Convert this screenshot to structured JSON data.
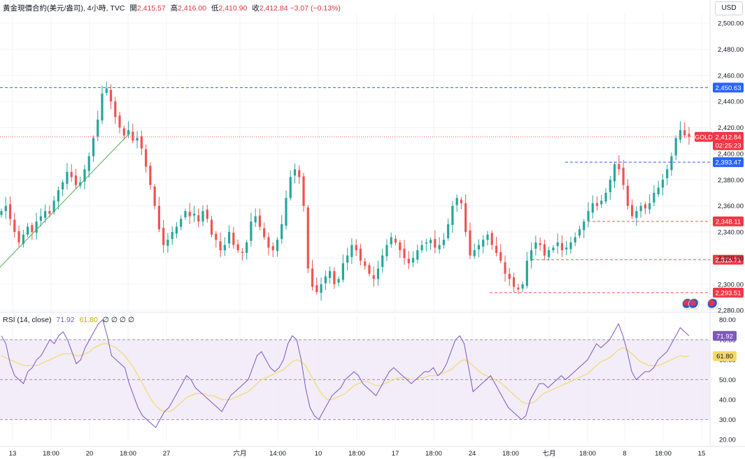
{
  "header": {
    "symbol": "黃金現價合約(美元/盎司), 4小時, TVC",
    "open_label": "開",
    "open": "2,415.57",
    "high_label": "高",
    "high": "2,416.00",
    "low_label": "低",
    "low": "2,410.90",
    "close_label": "收",
    "close": "2,412.84",
    "change": "−3.07 (−0.13%)"
  },
  "currency_button": "USD",
  "rsi_header": {
    "label": "RSI (14, close)",
    "rsi": "71.92",
    "ma": "61.80",
    "extras": "∅ ∅ ∅ ∅"
  },
  "colors": {
    "up": "#26a69a",
    "down": "#ef5350",
    "rsi_line": "#7e57c2",
    "rsi_ma": "#f5d96b",
    "rsi_band": "#ede7f6",
    "trendline": "#4caf50",
    "level_blue": "#2962ff",
    "level_red": "#ef5350",
    "price_tag": "#f23645",
    "blue_tag": "#2962ff",
    "purple_tag": "#7e57c2",
    "yellow_tag": "#f5d96b"
  },
  "chart_data": [
    {
      "type": "candlestick",
      "title": "黃金現價合約(美元/盎司), 4小時, TVC",
      "y_ticks": [
        "2,500.00",
        "2,480.00",
        "2,460.00",
        "2,440.00",
        "2,420.00",
        "2,400.00",
        "2,380.00",
        "2,360.00",
        "2,340.00",
        "2,320.00",
        "2,300.00",
        "2,280.00"
      ],
      "y_tick_values": [
        2500,
        2480,
        2460,
        2440,
        2420,
        2400,
        2380,
        2360,
        2340,
        2320,
        2300,
        2280
      ],
      "ylim": [
        2279,
        2507
      ],
      "x_ticks": [
        "13",
        "18:00",
        "20",
        "18:00",
        "27",
        "六月",
        "14:00",
        "10",
        "18:00",
        "17",
        "18:00",
        "24",
        "18:00",
        "七月",
        "18:00",
        "8",
        "18:00",
        "15"
      ],
      "series_close_path": [
        2356,
        2360,
        2350,
        2340,
        2332,
        2338,
        2344,
        2340,
        2348,
        2352,
        2356,
        2354,
        2364,
        2372,
        2378,
        2386,
        2382,
        2376,
        2378,
        2388,
        2398,
        2412,
        2426,
        2446,
        2450,
        2440,
        2428,
        2420,
        2414,
        2418,
        2410,
        2412,
        2404,
        2390,
        2376,
        2360,
        2342,
        2330,
        2334,
        2340,
        2344,
        2350,
        2356,
        2352,
        2354,
        2348,
        2356,
        2350,
        2338,
        2334,
        2326,
        2330,
        2340,
        2330,
        2326,
        2324,
        2332,
        2348,
        2352,
        2344,
        2336,
        2328,
        2326,
        2334,
        2346,
        2366,
        2382,
        2388,
        2382,
        2360,
        2312,
        2298,
        2294,
        2300,
        2306,
        2310,
        2300,
        2304,
        2316,
        2322,
        2330,
        2326,
        2318,
        2314,
        2308,
        2304,
        2312,
        2322,
        2330,
        2336,
        2332,
        2326,
        2320,
        2316,
        2320,
        2326,
        2330,
        2332,
        2334,
        2328,
        2330,
        2334,
        2346,
        2360,
        2366,
        2362,
        2340,
        2322,
        2326,
        2330,
        2334,
        2338,
        2330,
        2324,
        2318,
        2308,
        2304,
        2298,
        2296,
        2300,
        2318,
        2326,
        2332,
        2330,
        2322,
        2326,
        2328,
        2332,
        2326,
        2328,
        2332,
        2336,
        2342,
        2348,
        2356,
        2362,
        2360,
        2364,
        2370,
        2380,
        2392,
        2388,
        2376,
        2360,
        2352,
        2356,
        2360,
        2358,
        2362,
        2370,
        2374,
        2380,
        2388,
        2398,
        2412,
        2418,
        2414,
        2412.84
      ],
      "horizontal_levels": [
        {
          "label": "2,450.63",
          "value": 2450.63,
          "color": "blue"
        },
        {
          "label": "2,393.47",
          "value": 2393.47,
          "color": "blue"
        },
        {
          "label": "2,348.11",
          "value": 2348.11,
          "color": "red"
        },
        {
          "label": "2,318.71",
          "value": 2318.71,
          "color": "red"
        },
        {
          "label": "2,293.51",
          "value": 2293.51,
          "color": "red"
        }
      ],
      "last_price": {
        "label": "2,412.84",
        "symbol": "GOLD",
        "countdown": "02:25:23",
        "value": 2412.84
      }
    },
    {
      "type": "line",
      "title": "RSI (14, close)",
      "y_ticks": [
        "80.00",
        "70.00",
        "60.00",
        "50.00",
        "40.00",
        "30.00",
        "20.00"
      ],
      "y_tick_values": [
        80,
        70,
        60,
        50,
        40,
        30,
        20
      ],
      "ylim": [
        19,
        82
      ],
      "band": [
        30,
        70
      ],
      "midline": 50,
      "rsi_values": [
        72,
        68,
        58,
        52,
        50,
        48,
        54,
        56,
        60,
        62,
        66,
        70,
        68,
        72,
        74,
        70,
        64,
        58,
        60,
        66,
        70,
        74,
        78,
        80,
        72,
        62,
        60,
        58,
        56,
        48,
        42,
        36,
        32,
        30,
        28,
        26,
        30,
        34,
        36,
        40,
        44,
        48,
        52,
        50,
        46,
        44,
        42,
        40,
        38,
        36,
        34,
        38,
        42,
        44,
        46,
        48,
        50,
        56,
        62,
        64,
        60,
        56,
        54,
        56,
        60,
        68,
        72,
        70,
        60,
        46,
        36,
        32,
        30,
        34,
        38,
        42,
        44,
        46,
        50,
        52,
        54,
        52,
        48,
        46,
        44,
        42,
        46,
        50,
        54,
        56,
        54,
        52,
        50,
        48,
        50,
        52,
        54,
        54,
        56,
        52,
        54,
        58,
        64,
        70,
        72,
        68,
        56,
        44,
        46,
        48,
        50,
        52,
        48,
        44,
        40,
        36,
        34,
        32,
        30,
        32,
        40,
        44,
        48,
        48,
        46,
        48,
        50,
        52,
        50,
        52,
        54,
        56,
        58,
        60,
        64,
        68,
        66,
        68,
        70,
        74,
        78,
        72,
        64,
        54,
        50,
        52,
        54,
        54,
        56,
        60,
        62,
        64,
        68,
        72,
        76,
        74,
        71.92
      ],
      "ma_values": [
        62,
        61,
        60,
        59,
        58,
        57,
        57,
        57,
        57,
        58,
        59,
        60,
        61,
        62,
        63,
        63,
        63,
        62,
        62,
        63,
        64,
        66,
        67,
        68,
        68,
        67,
        66,
        64,
        62,
        59,
        56,
        52,
        48,
        44,
        40,
        37,
        35,
        34,
        34,
        35,
        37,
        39,
        41,
        42,
        43,
        43,
        43,
        42,
        42,
        41,
        40,
        40,
        40,
        41,
        42,
        43,
        44,
        46,
        48,
        50,
        51,
        52,
        53,
        54,
        55,
        57,
        59,
        60,
        59,
        57,
        53,
        49,
        45,
        42,
        40,
        40,
        41,
        42,
        43,
        45,
        47,
        48,
        49,
        49,
        48,
        47,
        47,
        48,
        49,
        50,
        51,
        51,
        51,
        50,
        50,
        51,
        51,
        52,
        52,
        52,
        53,
        54,
        55,
        57,
        59,
        60,
        59,
        57,
        55,
        53,
        52,
        51,
        50,
        49,
        47,
        45,
        43,
        41,
        39,
        38,
        38,
        39,
        41,
        43,
        44,
        45,
        46,
        47,
        48,
        49,
        50,
        51,
        52,
        53,
        55,
        57,
        59,
        60,
        61,
        63,
        65,
        66,
        65,
        63,
        61,
        59,
        58,
        57,
        57,
        57,
        58,
        59,
        60,
        61,
        62,
        61.5,
        61.8
      ],
      "rsi_label": "71.92",
      "ma_label": "61.80"
    }
  ]
}
